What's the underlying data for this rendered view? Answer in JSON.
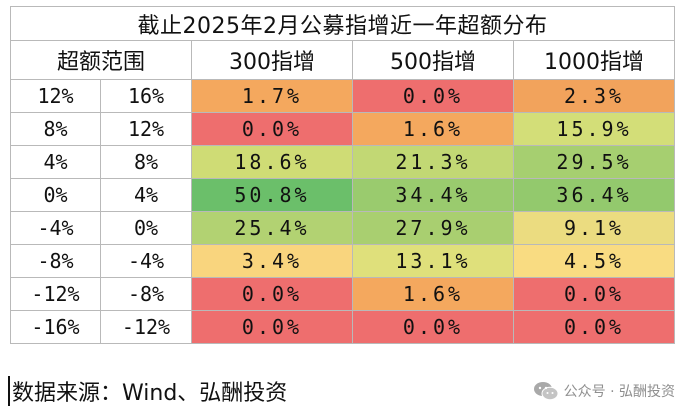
{
  "title": "截止2025年2月公募指增近一年超额分布",
  "headers": {
    "range": "超额范围",
    "col1": "300指增",
    "col2": "500指增",
    "col3": "1000指增"
  },
  "rows": [
    {
      "low": "12%",
      "high": "16%",
      "values": [
        "1.7%",
        "0.0%",
        "2.3%"
      ],
      "colors": [
        "#f4a85e",
        "#ee6e6e",
        "#f2a35c"
      ]
    },
    {
      "low": "8%",
      "high": "12%",
      "values": [
        "0.0%",
        "1.6%",
        "15.9%"
      ],
      "colors": [
        "#ee6e6e",
        "#f4a85e",
        "#d3de78"
      ]
    },
    {
      "low": "4%",
      "high": "8%",
      "values": [
        "18.6%",
        "21.3%",
        "29.5%"
      ],
      "colors": [
        "#cfdc75",
        "#c2d874",
        "#a6cf70"
      ]
    },
    {
      "low": "0%",
      "high": "4%",
      "values": [
        "50.8%",
        "34.4%",
        "36.4%"
      ],
      "colors": [
        "#6bbf6a",
        "#9acb6e",
        "#93c96d"
      ]
    },
    {
      "low": "-4%",
      "high": "0%",
      "values": [
        "25.4%",
        "27.9%",
        "9.1%"
      ],
      "colors": [
        "#b2d272",
        "#a9cf70",
        "#ebdc80"
      ]
    },
    {
      "low": "-8%",
      "high": "-4%",
      "values": [
        "3.4%",
        "13.1%",
        "4.5%"
      ],
      "colors": [
        "#f9d57e",
        "#dfe07b",
        "#f9dc82"
      ]
    },
    {
      "low": "-12%",
      "high": "-8%",
      "values": [
        "0.0%",
        "1.6%",
        "0.0%"
      ],
      "colors": [
        "#ee6e6e",
        "#f4a85e",
        "#ee6e6e"
      ]
    },
    {
      "low": "-16%",
      "high": "-12%",
      "values": [
        "0.0%",
        "0.0%",
        "0.0%"
      ],
      "colors": [
        "#ee6e6e",
        "#ee6e6e",
        "#ee6e6e"
      ]
    }
  ],
  "source": "数据来源：Wind、弘酬投资",
  "watermark": {
    "label": "公众号 · 弘酬投资",
    "icon": "wechat-icon"
  }
}
